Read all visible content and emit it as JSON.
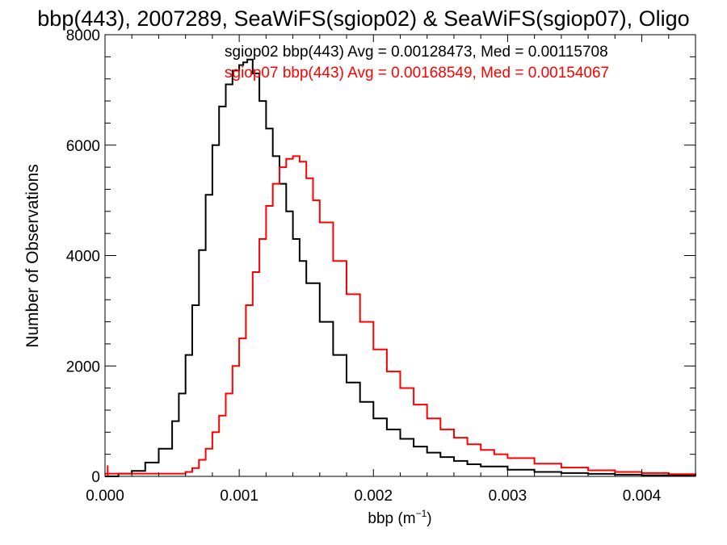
{
  "chart_data": {
    "type": "line",
    "title": "bbp(443), 2007289, SeaWiFS(sgiop02) & SeaWiFS(sgiop07), Oligo",
    "xlabel_main": "bbp (m",
    "xlabel_sup": "−1",
    "xlabel_end": ")",
    "ylabel": "Number of Observations",
    "xlim": [
      0.0,
      0.0044
    ],
    "ylim": [
      0,
      8000
    ],
    "x_ticks": [
      0.0,
      0.001,
      0.002,
      0.003,
      0.004
    ],
    "x_tick_labels": [
      "0.000",
      "0.001",
      "0.002",
      "0.003",
      "0.004"
    ],
    "y_ticks": [
      0,
      2000,
      4000,
      6000,
      8000
    ],
    "y_tick_labels": [
      "0",
      "2000",
      "4000",
      "6000",
      "8000"
    ],
    "step": true,
    "series": [
      {
        "name": "sgiop02",
        "color": "#000000",
        "label": "sgiop02 bbp(443) Avg = 0.00128473, Med = 0.00115708",
        "x": [
          0.0,
          0.0001,
          0.0002,
          0.0003,
          0.0004,
          0.0005,
          0.00055,
          0.0006,
          0.00065,
          0.0007,
          0.00075,
          0.0008,
          0.00085,
          0.0009,
          0.00095,
          0.001,
          0.00103,
          0.00106,
          0.0011,
          0.00115,
          0.0012,
          0.00125,
          0.0013,
          0.00135,
          0.0014,
          0.00145,
          0.0015,
          0.0016,
          0.0017,
          0.0018,
          0.0019,
          0.002,
          0.0021,
          0.0022,
          0.0023,
          0.0024,
          0.0025,
          0.0026,
          0.0027,
          0.0028,
          0.003,
          0.0032,
          0.0034,
          0.0036,
          0.0038,
          0.004,
          0.0042,
          0.0044
        ],
        "y": [
          0,
          50,
          100,
          250,
          500,
          1000,
          1500,
          2200,
          3100,
          4100,
          5100,
          6000,
          6700,
          7100,
          7350,
          7450,
          7500,
          7550,
          7300,
          6800,
          6300,
          5800,
          5300,
          4800,
          4300,
          3900,
          3500,
          2800,
          2200,
          1700,
          1350,
          1050,
          850,
          680,
          540,
          430,
          350,
          280,
          220,
          180,
          120,
          80,
          60,
          45,
          30,
          20,
          15,
          10
        ]
      },
      {
        "name": "sgiop07",
        "color": "#ff0000",
        "label": "sgiop07 bbp(443) Avg = 0.00168549, Med = 0.00154067",
        "x": [
          0.0,
          0.0001,
          0.0002,
          0.0003,
          0.0004,
          0.0006,
          0.00065,
          0.0007,
          0.00075,
          0.0008,
          0.00085,
          0.0009,
          0.00095,
          0.001,
          0.00105,
          0.0011,
          0.00115,
          0.0012,
          0.00125,
          0.0013,
          0.00135,
          0.0014,
          0.00145,
          0.0015,
          0.00155,
          0.0016,
          0.0017,
          0.0018,
          0.0019,
          0.002,
          0.0021,
          0.0022,
          0.0023,
          0.0024,
          0.0025,
          0.0026,
          0.0027,
          0.0028,
          0.0029,
          0.003,
          0.0032,
          0.0034,
          0.0036,
          0.0038,
          0.004,
          0.0042,
          0.0044
        ],
        "y": [
          50,
          50,
          50,
          50,
          50,
          80,
          150,
          300,
          500,
          800,
          1100,
          1500,
          2000,
          2500,
          3100,
          3700,
          4300,
          4900,
          5300,
          5600,
          5750,
          5800,
          5700,
          5400,
          5000,
          4600,
          3900,
          3300,
          2800,
          2300,
          1900,
          1600,
          1300,
          1050,
          850,
          700,
          580,
          480,
          400,
          330,
          230,
          160,
          110,
          80,
          60,
          40,
          30
        ]
      }
    ],
    "spike": {
      "x": 2e-05,
      "y": 200
    }
  }
}
